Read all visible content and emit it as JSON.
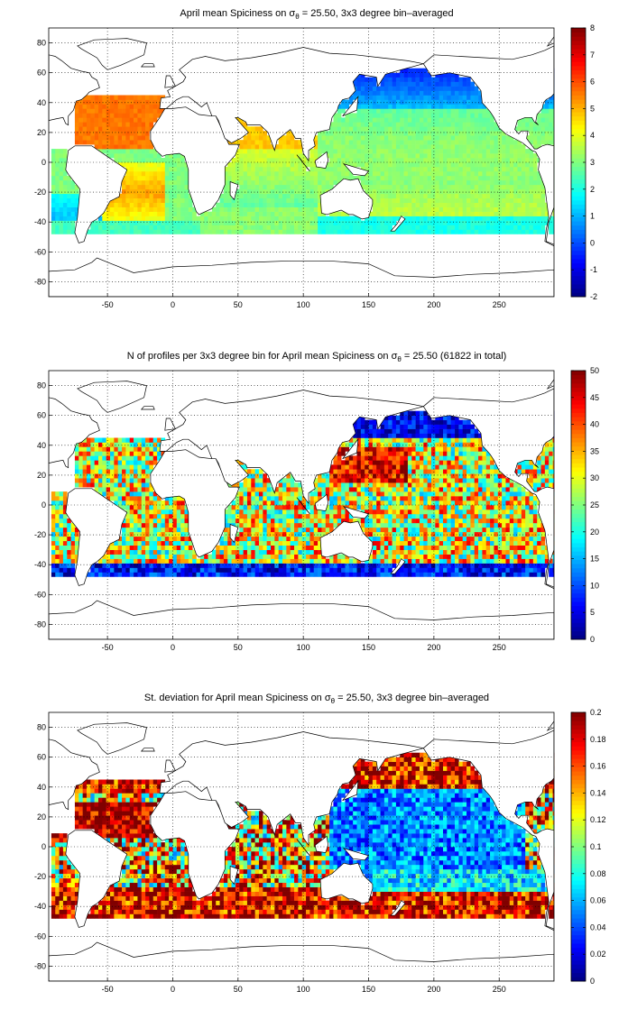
{
  "figure": {
    "colormap": "jet",
    "land_color": "#ffffff",
    "coastline_color": "#000000",
    "grid": "dotted"
  },
  "chart_data": [
    {
      "type": "heatmap",
      "title_parts": [
        "April mean Spiciness on σ",
        "θ",
        " = 25.50, 3x3 degree bin–averaged"
      ],
      "title": "April mean Spiciness on σθ = 25.50, 3x3 degree bin–averaged",
      "variable": "spiciness",
      "xlim": [
        -95,
        292
      ],
      "ylim": [
        -90,
        90
      ],
      "xticks": [
        -50,
        0,
        50,
        100,
        150,
        200,
        250
      ],
      "yticks": [
        -80,
        -60,
        -40,
        -20,
        0,
        20,
        40,
        60,
        80
      ],
      "colorbar": {
        "min": -2,
        "max": 8,
        "ticks": [
          -2,
          -1,
          0,
          1,
          2,
          3,
          4,
          5,
          6,
          7,
          8
        ]
      },
      "bin_size_deg": 3,
      "grid": true
    },
    {
      "type": "heatmap",
      "title_parts": [
        "N of profiles per 3x3 degree bin for April mean Spiciness on σ",
        "θ",
        " = 25.50 (61822 in total)"
      ],
      "title": "N of profiles per 3x3 degree bin for April mean Spiciness on σθ = 25.50 (61822 in total)",
      "variable": "count",
      "total_profiles": 61822,
      "xlim": [
        -95,
        292
      ],
      "ylim": [
        -90,
        90
      ],
      "xticks": [
        -50,
        0,
        50,
        100,
        150,
        200,
        250
      ],
      "yticks": [
        -80,
        -60,
        -40,
        -20,
        0,
        20,
        40,
        60,
        80
      ],
      "colorbar": {
        "min": 0,
        "max": 50,
        "ticks": [
          0,
          5,
          10,
          15,
          20,
          25,
          30,
          35,
          40,
          45,
          50
        ]
      },
      "bin_size_deg": 3,
      "grid": true
    },
    {
      "type": "heatmap",
      "title_parts": [
        "St. deviation for April mean Spiciness on σ",
        "θ",
        " = 25.50, 3x3 degree bin–averaged"
      ],
      "title": "St. deviation for April mean Spiciness on σθ = 25.50, 3x3 degree bin–averaged",
      "variable": "std",
      "xlim": [
        -95,
        292
      ],
      "ylim": [
        -90,
        90
      ],
      "xticks": [
        -50,
        0,
        50,
        100,
        150,
        200,
        250
      ],
      "yticks": [
        -80,
        -60,
        -40,
        -20,
        0,
        20,
        40,
        60,
        80
      ],
      "colorbar": {
        "min": 0,
        "max": 0.2,
        "ticks": [
          0,
          0.02,
          0.04,
          0.06,
          0.08,
          0.1,
          0.12,
          0.14,
          0.16,
          0.18,
          0.2
        ],
        "tick_labels": [
          "0",
          "0.02",
          "0.04",
          "0.06",
          "0.08",
          "0.1",
          "0.12",
          "0.14",
          "0.16",
          "0.18",
          "0.2"
        ]
      },
      "bin_size_deg": 3,
      "grid": true
    }
  ]
}
